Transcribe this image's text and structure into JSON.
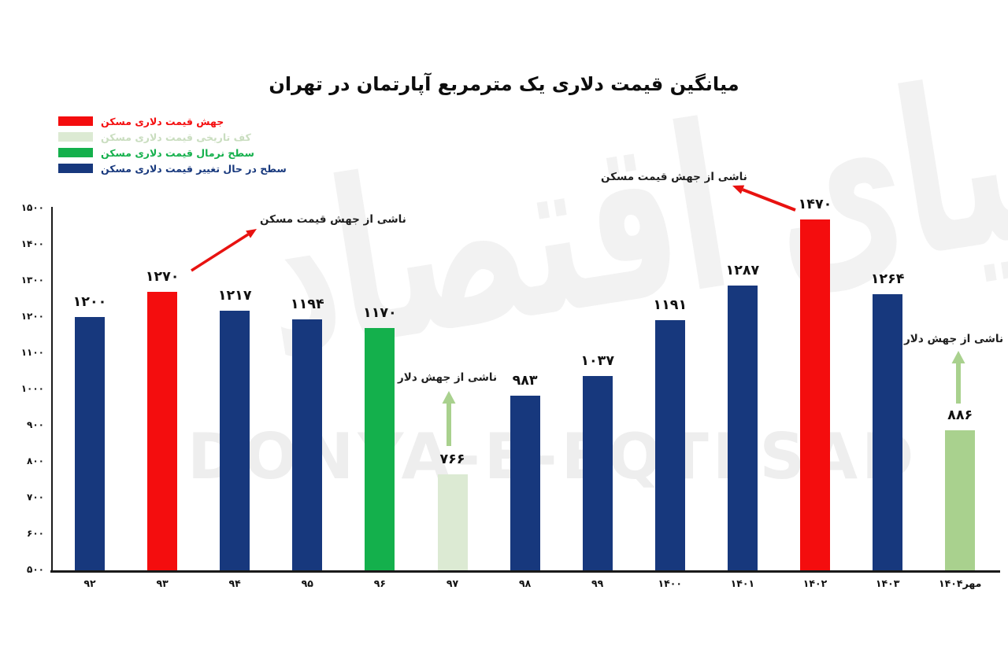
{
  "title": "میانگین قیمت دلاری یک مترمربع آپارتمان در تهران",
  "watermark": {
    "latin": "DONYA-E-EQTESAD",
    "persian": "دنیای اقتصاد"
  },
  "legend": {
    "items": [
      {
        "label": "جهش قیمت دلاری مسکن",
        "color": "#f40d0e",
        "role": "jump"
      },
      {
        "label": "کف تاریخی قیمت دلاری مسکن",
        "color": "#dcead3",
        "role": "floor"
      },
      {
        "label": "سطح نرمال قیمت دلاری مسکن",
        "color": "#14b04c",
        "role": "normal"
      },
      {
        "label": "سطح در حال تغییر قیمت دلاری مسکن",
        "color": "#17387d",
        "role": "changing"
      }
    ]
  },
  "chart_data": {
    "type": "bar",
    "title": "میانگین قیمت دلاری یک مترمربع آپارتمان در تهران",
    "categories": [
      "۹۲",
      "۹۳",
      "۹۴",
      "۹۵",
      "۹۶",
      "۹۷",
      "۹۸",
      "۹۹",
      "۱۴۰۰",
      "۱۴۰۱",
      "۱۴۰۲",
      "۱۴۰۳",
      "مهر۱۴۰۴"
    ],
    "categories_latin": [
      "92",
      "93",
      "94",
      "95",
      "96",
      "97",
      "98",
      "99",
      "1400",
      "1401",
      "1402",
      "1403",
      "Mehr 1404"
    ],
    "values": [
      1200,
      1270,
      1217,
      1194,
      1170,
      766,
      983,
      1037,
      1191,
      1287,
      1470,
      1264,
      886
    ],
    "value_labels": [
      "۱۲۰۰",
      "۱۲۷۰",
      "۱۲۱۷",
      "۱۱۹۴",
      "۱۱۷۰",
      "۷۶۶",
      "۹۸۳",
      "۱۰۳۷",
      "۱۱۹۱",
      "۱۲۸۷",
      "۱۴۷۰",
      "۱۲۶۴",
      "۸۸۶"
    ],
    "bar_roles": [
      "changing",
      "jump",
      "changing",
      "changing",
      "normal",
      "floor",
      "changing",
      "changing",
      "changing",
      "changing",
      "jump",
      "changing",
      "floor_recent"
    ],
    "role_colors": {
      "jump": "#f40d0e",
      "floor": "#dcead3",
      "normal": "#14b04c",
      "changing": "#17387d",
      "floor_recent": "#a9d18e"
    },
    "xlabel": "",
    "ylabel": "",
    "ylim": [
      500,
      1500
    ],
    "ytick_labels": [
      "۵۰۰",
      "۶۰۰",
      "۷۰۰",
      "۸۰۰",
      "۹۰۰",
      "۱۰۰۰",
      "۱۱۰۰",
      "۱۲۰۰",
      "۱۳۰۰",
      "۱۴۰۰",
      "۱۵۰۰"
    ],
    "grid": false,
    "legend_position": "top-left",
    "annotations": [
      {
        "text": "ناشی از جهش قیمت مسکن",
        "target_category": "۹۳",
        "arrow_color": "#e81210",
        "direction": "up-right"
      },
      {
        "text": "ناشی از جهش قیمت مسکن",
        "target_category": "۱۴۰۲",
        "arrow_color": "#e81210",
        "direction": "up-left"
      },
      {
        "text": "ناشی از جهش دلار",
        "target_category": "۹۷",
        "arrow_color": "#a9d18e",
        "direction": "up"
      },
      {
        "text": "ناشی از جهش دلار",
        "target_category": "مهر۱۴۰۴",
        "arrow_color": "#a9d18e",
        "direction": "up"
      }
    ]
  }
}
